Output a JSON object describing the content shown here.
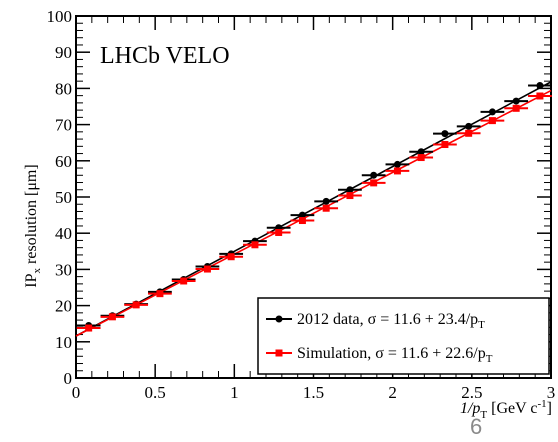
{
  "chart_data": {
    "type": "scatter",
    "title": "LHCb VELO",
    "xlabel_prefix": "1/p",
    "xlabel_sub": "T",
    "xlabel_suffix": " [GeV c",
    "xlabel_sup": "-1",
    "xlabel_close": "]",
    "ylabel_main": "IP",
    "ylabel_sub": "x",
    "ylabel_rest": " resolution [μm]",
    "xlim": [
      0,
      3
    ],
    "ylim": [
      0,
      100
    ],
    "x_ticks": [
      "0",
      "0.5",
      "1",
      "1.5",
      "2",
      "2.5",
      "3"
    ],
    "y_ticks": [
      "0",
      "10",
      "20",
      "30",
      "40",
      "50",
      "60",
      "70",
      "80",
      "90",
      "100"
    ],
    "grid": false,
    "legend_position": "bottom-right",
    "series": [
      {
        "name_prefix": "2012 data,  σ = 11.6 + 23.4/p",
        "name_sub": "T",
        "color": "#000000",
        "marker": "circle",
        "fit": {
          "intercept": 11.6,
          "slope": 23.4
        },
        "x": [
          0.08,
          0.23,
          0.38,
          0.53,
          0.68,
          0.83,
          0.98,
          1.13,
          1.28,
          1.43,
          1.58,
          1.73,
          1.88,
          2.03,
          2.18,
          2.33,
          2.48,
          2.63,
          2.78,
          2.93
        ],
        "y": [
          14.5,
          17.2,
          20.4,
          23.8,
          27.2,
          30.8,
          34.3,
          37.8,
          41.5,
          45.0,
          48.8,
          52.0,
          56.0,
          59.0,
          62.5,
          67.5,
          69.5,
          73.5,
          76.5,
          80.8
        ],
        "xerr": 0.075
      },
      {
        "name_prefix": "Simulation, σ = 11.6 + 22.6/p",
        "name_sub": "T",
        "color": "#ff0000",
        "marker": "square",
        "fit": {
          "intercept": 11.6,
          "slope": 22.6
        },
        "x": [
          0.08,
          0.23,
          0.38,
          0.53,
          0.68,
          0.83,
          0.98,
          1.13,
          1.28,
          1.43,
          1.58,
          1.73,
          1.88,
          2.03,
          2.18,
          2.33,
          2.48,
          2.63,
          2.78,
          2.93
        ],
        "y": [
          13.8,
          16.9,
          20.2,
          23.3,
          26.8,
          30.1,
          33.5,
          36.8,
          40.2,
          43.5,
          46.9,
          50.4,
          53.9,
          57.2,
          60.9,
          64.5,
          67.6,
          71.1,
          74.5,
          77.9
        ],
        "xerr": 0.075
      }
    ]
  },
  "footer": {
    "page_number": "6"
  }
}
